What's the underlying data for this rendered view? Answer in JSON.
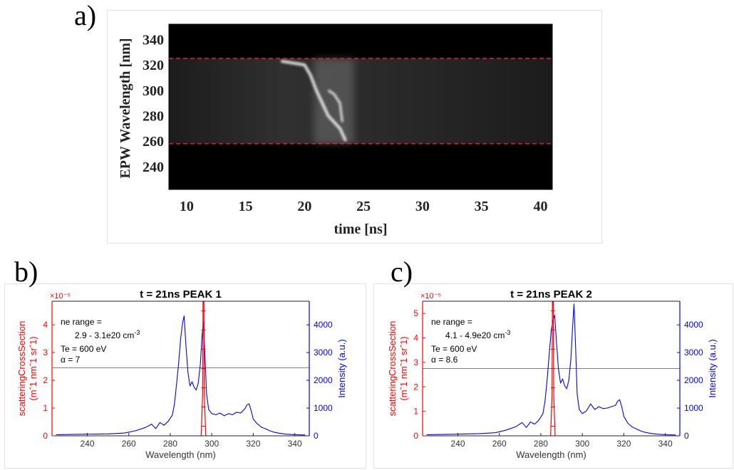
{
  "panels": {
    "a": {
      "letter": "a)"
    },
    "b": {
      "letter": "b)"
    },
    "c": {
      "letter": "c)"
    }
  },
  "chart_data": [
    {
      "panel": "a",
      "type": "heatmap",
      "title": "",
      "xlabel": "time [ns]",
      "ylabel": "EPW Wavelength [nm]",
      "xlim": [
        8.5,
        41
      ],
      "ylim": [
        222,
        352
      ],
      "xticks": [
        10,
        15,
        20,
        25,
        30,
        35,
        40
      ],
      "yticks": [
        240,
        260,
        280,
        300,
        320,
        340
      ],
      "colormap": "gray",
      "background": "#000000",
      "signal_band": [
        258,
        325
      ],
      "hlines": [
        {
          "y": 325,
          "color": "#e0202a",
          "style": "dashed"
        },
        {
          "y": 258,
          "color": "#e0202a",
          "style": "dashed"
        }
      ],
      "features": [
        {
          "name": "bright streak",
          "x": [
            18.0,
            20.0,
            20.5,
            21.0,
            21.5,
            22.0,
            23.0,
            23.5
          ],
          "y": [
            323,
            320,
            312,
            300,
            290,
            280,
            270,
            260
          ]
        },
        {
          "name": "secondary streak",
          "x": [
            22.0,
            22.5,
            23.0,
            23.2
          ],
          "y": [
            300,
            297,
            290,
            275
          ]
        }
      ]
    },
    {
      "panel": "b",
      "type": "line",
      "title": "t = 21ns PEAK 1",
      "xlabel": "Wavelength (nm)",
      "ylabel": "scatteringCrossSection",
      "ylabel_units": "(mˆ1 nmˆ1 srˆ1)",
      "y2label": "Intensity (a.u.)",
      "y_exponent": "×10⁻⁵",
      "xlim": [
        223,
        347
      ],
      "ylim": [
        0,
        4.85
      ],
      "y2lim": [
        0,
        4850
      ],
      "xticks": [
        240,
        260,
        280,
        300,
        320,
        340
      ],
      "yticks": [
        0,
        1,
        2,
        3,
        4
      ],
      "y2ticks": [
        0,
        1000,
        2000,
        3000,
        4000
      ],
      "grid": false,
      "annotation": {
        "line1": "ne range =",
        "line2": "2.9 - 3.1e20 cm",
        "line2_sup": "-3",
        "line3": "Te = 600 eV",
        "line4": "α = 7"
      },
      "hline": {
        "y": 2.45,
        "color": "#808080"
      },
      "red_peak": {
        "center": 296,
        "height": 4.85,
        "color": "#ff0000"
      },
      "series": [
        {
          "color": "#0000ff",
          "axis": "right",
          "x": [
            225,
            240,
            250,
            258,
            263,
            268,
            271,
            273,
            275,
            277,
            279,
            281,
            282,
            283,
            284,
            285,
            286,
            286.7,
            287.5,
            288.5,
            289.5,
            290.5,
            291.5,
            292.5,
            293.5,
            294.5,
            295.3,
            296,
            296.7,
            297.5,
            298.5,
            300,
            302,
            304,
            306,
            308,
            310,
            312,
            314,
            316,
            317,
            318,
            319,
            320,
            322,
            324,
            326,
            328,
            330,
            332,
            334,
            336,
            340,
            345
          ],
          "y": [
            40,
            60,
            70,
            100,
            180,
            300,
            420,
            260,
            480,
            380,
            520,
            750,
            1150,
            1850,
            2600,
            3500,
            4100,
            4320,
            3300,
            2300,
            1800,
            1950,
            1750,
            1650,
            1900,
            2600,
            3600,
            4100,
            2900,
            1500,
            950,
            800,
            760,
            820,
            720,
            800,
            760,
            850,
            820,
            980,
            1120,
            1150,
            900,
            600,
            430,
            310,
            250,
            180,
            130,
            100,
            80,
            60,
            40,
            30
          ]
        }
      ]
    },
    {
      "panel": "c",
      "type": "line",
      "title": "t = 21ns PEAK 2",
      "xlabel": "Wavelength (nm)",
      "ylabel": "scatteringCrossSection",
      "ylabel_units": "(mˆ1 nmˆ1 srˆ1)",
      "y2label": "Intensity (a.u.)",
      "y_exponent": "×10⁻⁵",
      "xlim": [
        223,
        347
      ],
      "ylim": [
        0,
        5.5
      ],
      "y2lim": [
        0,
        4850
      ],
      "xticks": [
        240,
        260,
        280,
        300,
        320,
        340
      ],
      "yticks": [
        0,
        1,
        2,
        3,
        4,
        5
      ],
      "y2ticks": [
        0,
        1000,
        2000,
        3000,
        4000
      ],
      "grid": false,
      "annotation": {
        "line1": "ne range =",
        "line2": "4.1 - 4.9e20 cm",
        "line2_sup": "-3",
        "line3": "Te = 600 eV",
        "line4": "α = 8.6"
      },
      "hline": {
        "y": 2.75,
        "color": "#808080"
      },
      "red_peak": {
        "center": 285.8,
        "height": 5.5,
        "color": "#ff0000"
      },
      "series": [
        {
          "color": "#0000ff",
          "axis": "right",
          "x": [
            225,
            240,
            250,
            258,
            263,
            268,
            271,
            273,
            275,
            277,
            279,
            281,
            282,
            283,
            284,
            285,
            286,
            286.7,
            287.5,
            288.5,
            289.5,
            290.5,
            291.5,
            292.5,
            293.5,
            294.5,
            295.3,
            296,
            296.7,
            297.5,
            298.5,
            300,
            302,
            304,
            306,
            308,
            310,
            312,
            314,
            316,
            317,
            318,
            319,
            320,
            322,
            324,
            326,
            328,
            330,
            332,
            334,
            336,
            340,
            345
          ],
          "y": [
            40,
            60,
            80,
            110,
            200,
            330,
            480,
            300,
            500,
            420,
            560,
            800,
            1250,
            2000,
            2900,
            3800,
            4200,
            4350,
            3400,
            2400,
            1900,
            2050,
            1800,
            1700,
            2000,
            2800,
            3900,
            4750,
            3300,
            1500,
            950,
            800,
            900,
            1150,
            950,
            1050,
            980,
            1000,
            1050,
            1100,
            1250,
            1300,
            1050,
            700,
            450,
            320,
            250,
            180,
            130,
            100,
            80,
            60,
            40,
            30
          ]
        }
      ]
    }
  ]
}
